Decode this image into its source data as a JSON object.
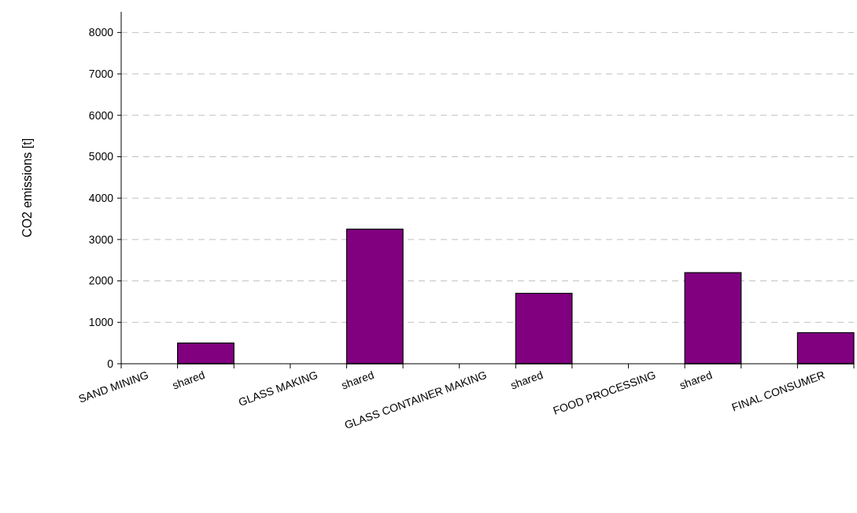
{
  "chart_data": {
    "type": "bar",
    "ylabel": "CO2 emissions [t]",
    "categories": [
      "SAND MINING",
      "shared",
      null,
      "GLASS MAKING",
      "shared",
      null,
      "GLASS CONTAINER MAKING",
      "shared",
      null,
      "FOOD PROCESSING",
      "shared",
      null,
      "FINAL CONSUMER"
    ],
    "values": [
      0,
      500,
      0,
      0,
      3250,
      0,
      0,
      1700,
      0,
      0,
      2200,
      0,
      750
    ],
    "color": "#800080",
    "ylim": [
      0,
      8500
    ],
    "yticks": [
      0,
      1000,
      2000,
      3000,
      4000,
      5000,
      6000,
      7000,
      8000
    ],
    "grid": "y",
    "line_style": "dashed"
  }
}
